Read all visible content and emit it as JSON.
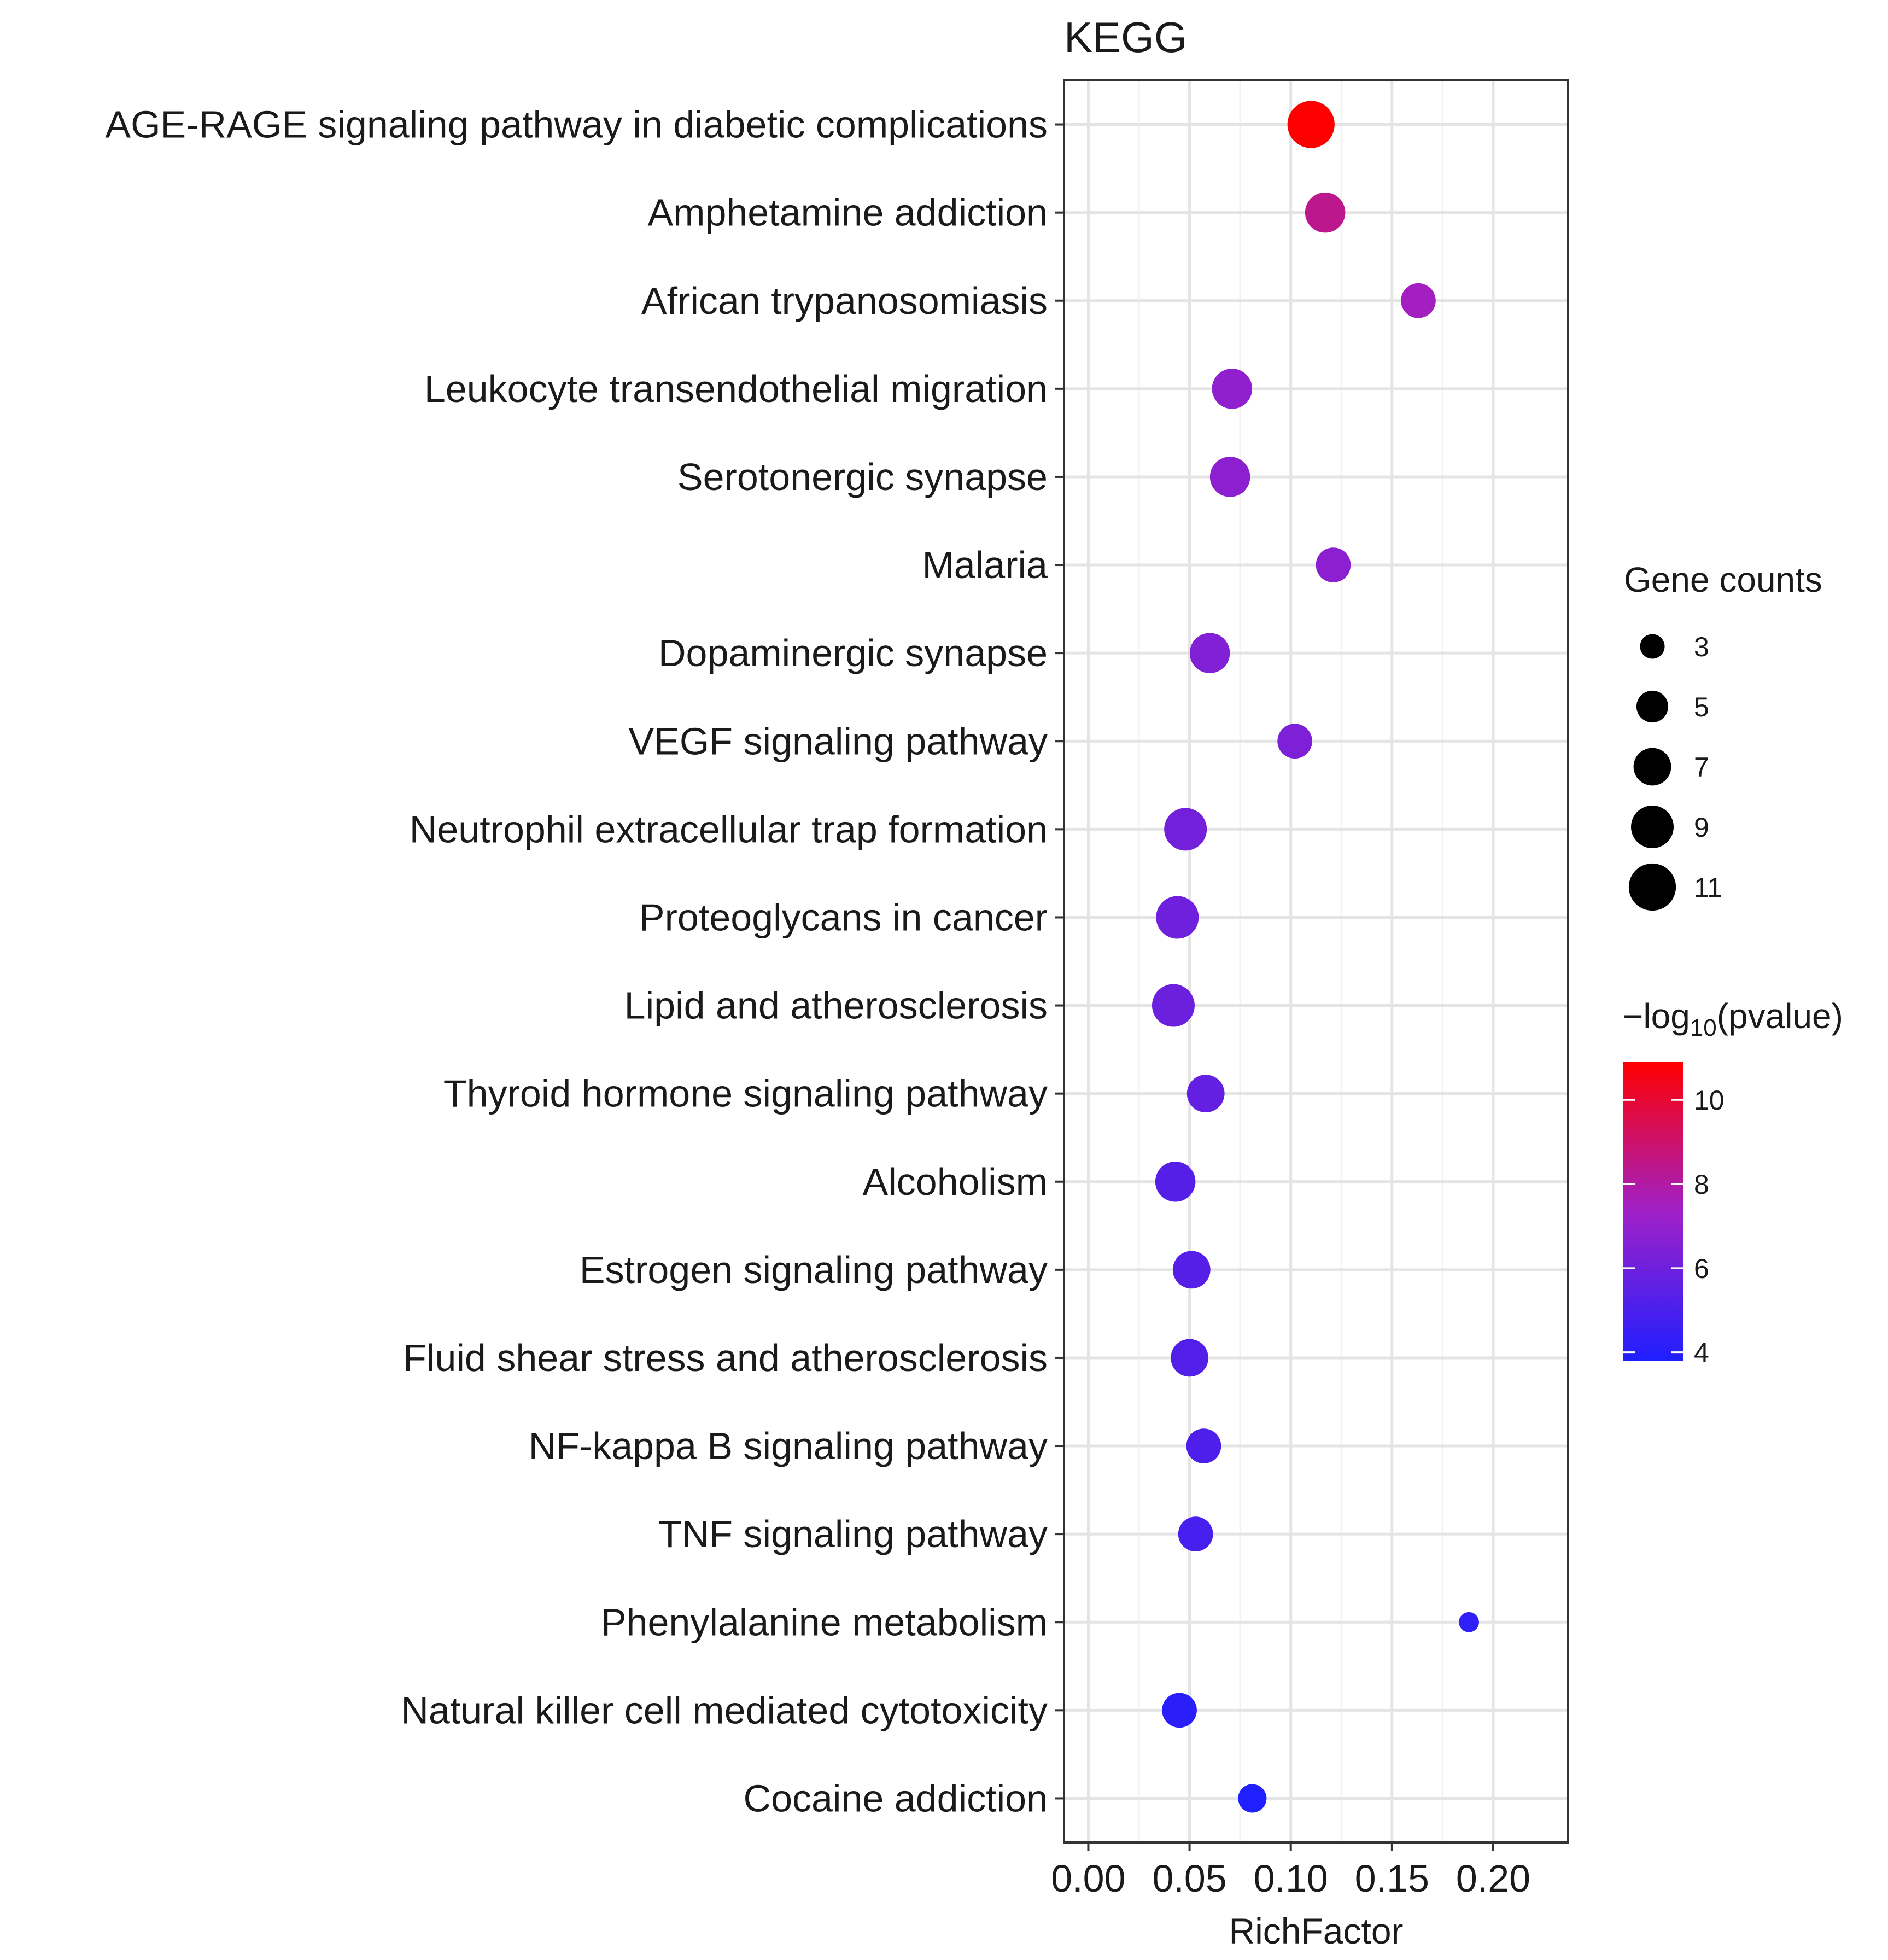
{
  "chart_data": {
    "type": "scatter",
    "title": "KEGG",
    "xlabel": "RichFactor",
    "ylabel": "",
    "xlim": [
      -0.012,
      0.237
    ],
    "xticks": [
      0.0,
      0.05,
      0.1,
      0.15,
      0.2
    ],
    "xtick_labels": [
      "0.00",
      "0.05",
      "0.10",
      "0.15",
      "0.20"
    ],
    "grid": true,
    "legend_position": "right",
    "size_legend": {
      "title": "Gene counts",
      "values": [
        3,
        5,
        7,
        9,
        11
      ],
      "labels": [
        "3",
        "5",
        "7",
        "9",
        "11"
      ]
    },
    "color_legend": {
      "title_prefix": "−log",
      "title_sub": "10",
      "title_suffix": "(pvalue)",
      "range": [
        3.8,
        10.9
      ],
      "ticks": [
        4,
        6,
        8,
        10
      ],
      "tick_labels": [
        "4",
        "6",
        "8",
        "10"
      ],
      "low_color": "#1f1fff",
      "mid_color": "#a020c8",
      "high_color": "#ff0000"
    },
    "points": [
      {
        "term": "AGE-RAGE signaling pathway in diabetic complications",
        "richfactor": 0.11,
        "count": 11,
        "neglog10p": 10.9
      },
      {
        "term": "Amphetamine addiction",
        "richfactor": 0.117,
        "count": 8,
        "neglog10p": 8.4
      },
      {
        "term": "African trypanosomiasis",
        "richfactor": 0.163,
        "count": 6,
        "neglog10p": 7.5
      },
      {
        "term": "Leukocyte transendothelial migration",
        "richfactor": 0.071,
        "count": 8,
        "neglog10p": 6.9
      },
      {
        "term": "Serotonergic synapse",
        "richfactor": 0.07,
        "count": 8,
        "neglog10p": 6.8
      },
      {
        "term": "Malaria",
        "richfactor": 0.121,
        "count": 6,
        "neglog10p": 6.8
      },
      {
        "term": "Dopaminergic synapse",
        "richfactor": 0.06,
        "count": 8,
        "neglog10p": 6.5
      },
      {
        "term": "VEGF signaling pathway",
        "richfactor": 0.102,
        "count": 6,
        "neglog10p": 6.4
      },
      {
        "term": "Neutrophil extracellular trap formation",
        "richfactor": 0.048,
        "count": 9,
        "neglog10p": 6.1
      },
      {
        "term": "Proteoglycans in cancer",
        "richfactor": 0.044,
        "count": 9,
        "neglog10p": 6.0
      },
      {
        "term": "Lipid and atherosclerosis",
        "richfactor": 0.042,
        "count": 9,
        "neglog10p": 5.9
      },
      {
        "term": "Thyroid hormone signaling pathway",
        "richfactor": 0.058,
        "count": 7,
        "neglog10p": 5.7
      },
      {
        "term": "Alcoholism",
        "richfactor": 0.043,
        "count": 8,
        "neglog10p": 5.3
      },
      {
        "term": "Estrogen signaling pathway",
        "richfactor": 0.051,
        "count": 7,
        "neglog10p": 5.3
      },
      {
        "term": "Fluid shear stress and atherosclerosis",
        "richfactor": 0.05,
        "count": 7,
        "neglog10p": 5.2
      },
      {
        "term": "NF-kappa B signaling pathway",
        "richfactor": 0.057,
        "count": 6,
        "neglog10p": 5.1
      },
      {
        "term": "TNF signaling pathway",
        "richfactor": 0.053,
        "count": 6,
        "neglog10p": 4.9
      },
      {
        "term": "Phenylalanine metabolism",
        "richfactor": 0.188,
        "count": 2,
        "neglog10p": 4.3
      },
      {
        "term": "Natural killer cell mediated cytotoxicity",
        "richfactor": 0.045,
        "count": 6,
        "neglog10p": 4.1
      },
      {
        "term": "Cocaine addiction",
        "richfactor": 0.081,
        "count": 4,
        "neglog10p": 3.8
      }
    ]
  }
}
